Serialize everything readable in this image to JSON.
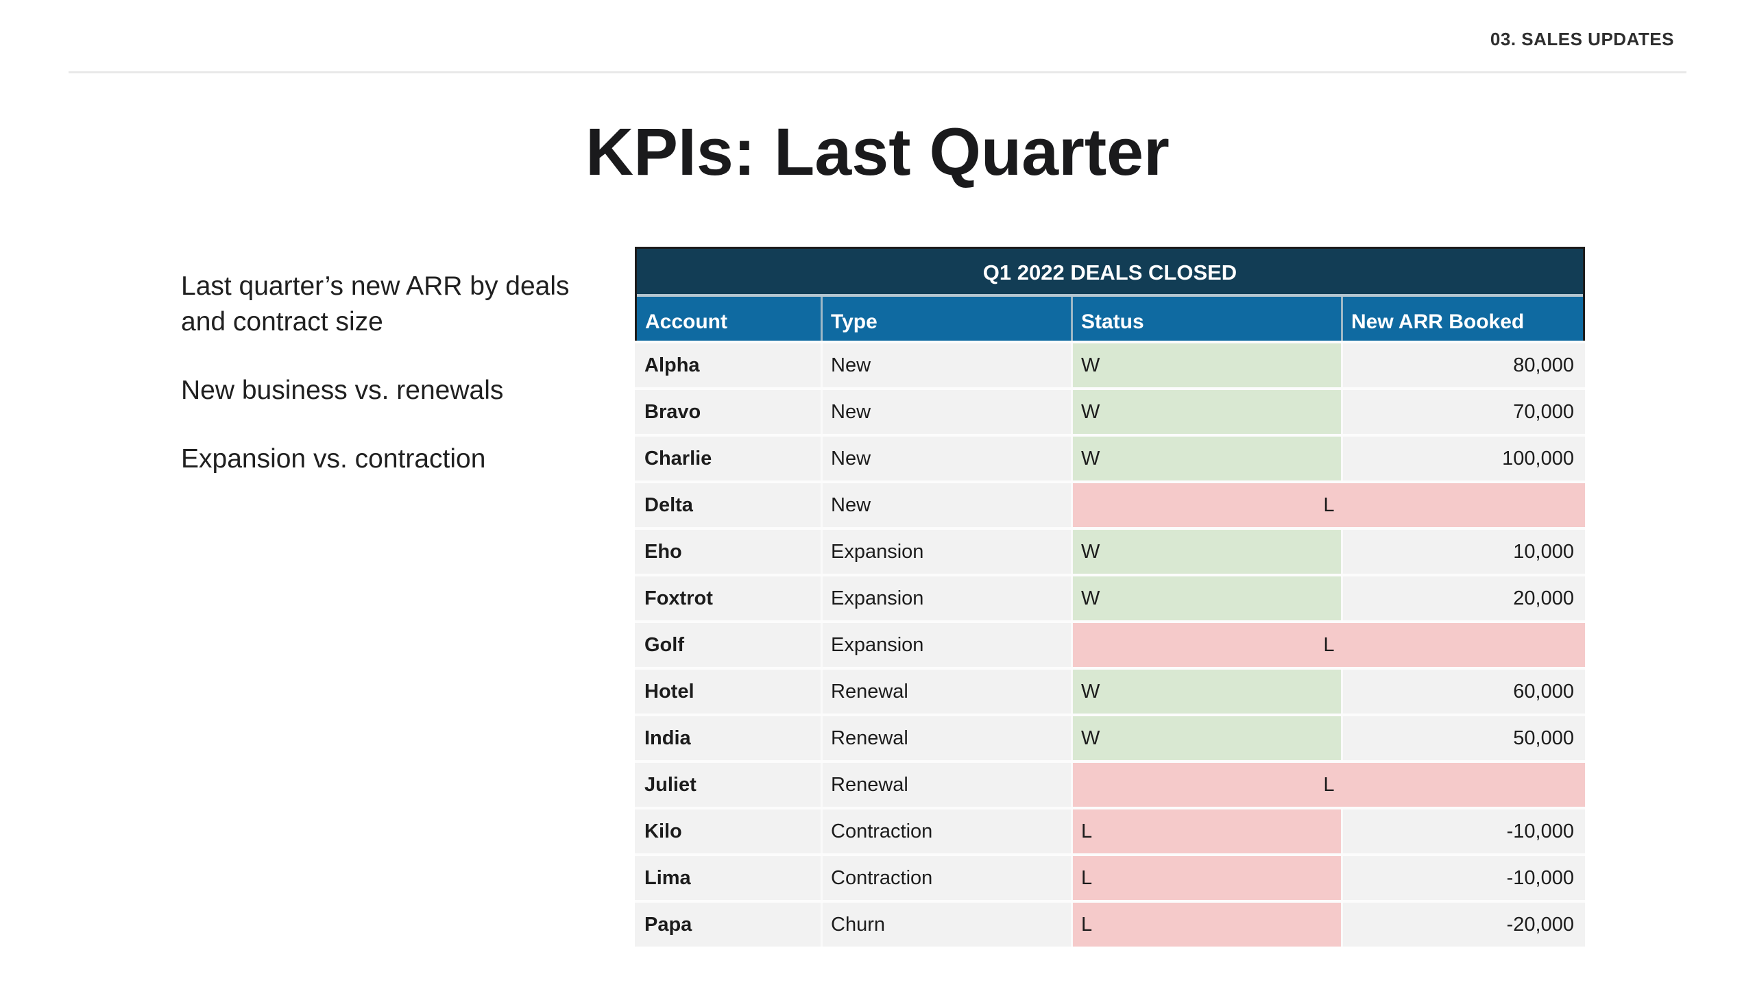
{
  "header": {
    "section_tag": "03. SALES UPDATES"
  },
  "title": "KPIs: Last Quarter",
  "notes": [
    "Last quarter’s new ARR by deals and contract size",
    "New business vs. renewals",
    "Expansion vs. contraction"
  ],
  "table": {
    "title": "Q1 2022 DEALS CLOSED",
    "columns": [
      "Account",
      "Type",
      "Status",
      "New ARR Booked"
    ],
    "rows": [
      {
        "account": "Alpha",
        "type": "New",
        "status": "W",
        "arr": "80,000",
        "result": "win",
        "merged": false
      },
      {
        "account": "Bravo",
        "type": "New",
        "status": "W",
        "arr": "70,000",
        "result": "win",
        "merged": false
      },
      {
        "account": "Charlie",
        "type": "New",
        "status": "W",
        "arr": "100,000",
        "result": "win",
        "merged": false
      },
      {
        "account": "Delta",
        "type": "New",
        "status": "L",
        "arr": "",
        "result": "loss",
        "merged": true
      },
      {
        "account": "Eho",
        "type": "Expansion",
        "status": "W",
        "arr": "10,000",
        "result": "win",
        "merged": false
      },
      {
        "account": "Foxtrot",
        "type": "Expansion",
        "status": "W",
        "arr": "20,000",
        "result": "win",
        "merged": false
      },
      {
        "account": "Golf",
        "type": "Expansion",
        "status": "L",
        "arr": "",
        "result": "loss",
        "merged": true
      },
      {
        "account": "Hotel",
        "type": "Renewal",
        "status": "W",
        "arr": "60,000",
        "result": "win",
        "merged": false
      },
      {
        "account": "India",
        "type": "Renewal",
        "status": "W",
        "arr": "50,000",
        "result": "win",
        "merged": false
      },
      {
        "account": "Juliet",
        "type": "Renewal",
        "status": "L",
        "arr": "",
        "result": "loss",
        "merged": true
      },
      {
        "account": "Kilo",
        "type": "Contraction",
        "status": "L",
        "arr": "-10,000",
        "result": "loss",
        "merged": false
      },
      {
        "account": "Lima",
        "type": "Contraction",
        "status": "L",
        "arr": "-10,000",
        "result": "loss",
        "merged": false
      },
      {
        "account": "Papa",
        "type": "Churn",
        "status": "L",
        "arr": "-20,000",
        "result": "loss",
        "merged": false
      }
    ]
  },
  "colors": {
    "table_title_navy": "#123d55",
    "column_header_blue": "#0f6aa1",
    "win_green": "#d9e8d2",
    "loss_pink": "#f5caca",
    "row_gray": "#f2f2f2"
  }
}
